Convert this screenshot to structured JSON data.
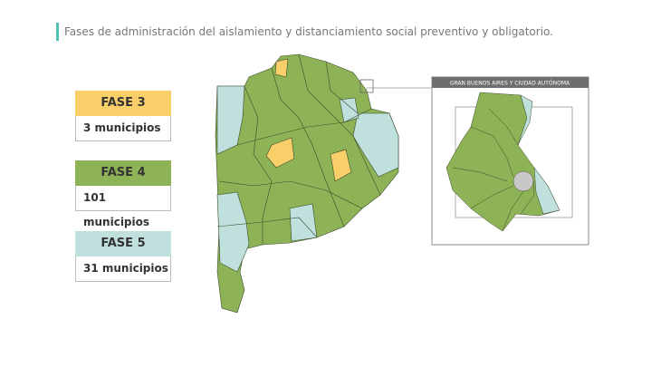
{
  "title": "Fases de administración del aislamiento y distanciamiento social preventivo y obligatorio.",
  "legend": [
    {
      "phase": "FASE 3",
      "count": "3 municipios"
    },
    {
      "phase": "FASE 4",
      "count": "101 municipios"
    },
    {
      "phase": "FASE 5",
      "count": "31 municipios"
    }
  ],
  "inset": {
    "title": "GRAN BUENOS AIRES Y CIUDAD AUTÓNOMA"
  }
}
